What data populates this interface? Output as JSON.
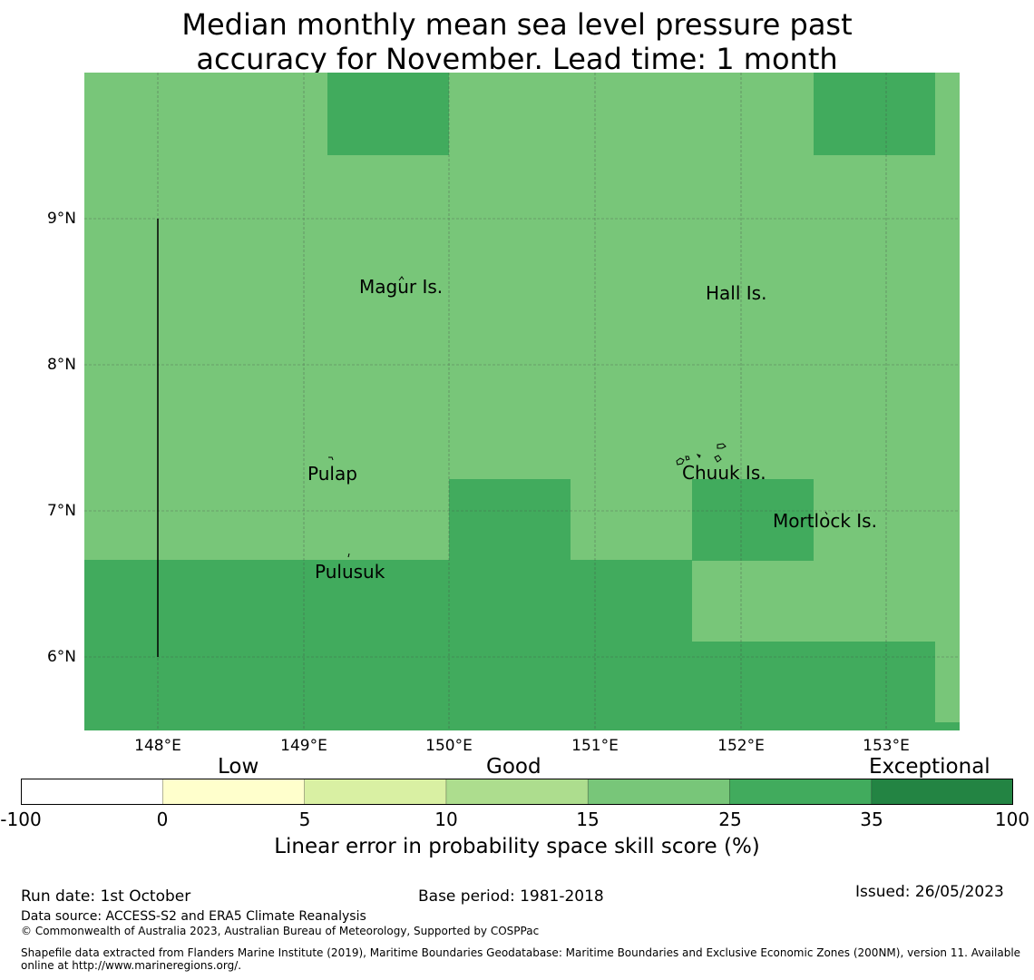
{
  "title": {
    "line1": "Median monthly mean sea level pressure past",
    "line2": "accuracy for November. Lead time: 1 month"
  },
  "map": {
    "lat_labels": [
      "9°N",
      "8°N",
      "7°N",
      "6°N"
    ],
    "lon_labels": [
      "148°E",
      "149°E",
      "150°E",
      "151°E",
      "152°E",
      "153°E"
    ],
    "places": [
      "Magur Is.",
      "Hall Is.",
      "Pulap",
      "Chuuk Is.",
      "Mortlock Is.",
      "Pulusuk"
    ],
    "colors": {
      "skill_15_25": "#78c679",
      "skill_25_35": "#41ab5d",
      "grid": "#444444"
    }
  },
  "legend": {
    "categories": [
      "Low",
      "Good",
      "Exceptional"
    ],
    "ticks": [
      "-100",
      "0",
      "5",
      "10",
      "15",
      "25",
      "35",
      "100"
    ],
    "colors": [
      "#ffffff",
      "#ffffcc",
      "#d9f0a3",
      "#addd8e",
      "#78c679",
      "#41ab5d",
      "#238443"
    ],
    "label": "Linear error in probability space skill score (%)"
  },
  "footer": {
    "run_date": "Run date: 1st October",
    "base_period": "Base period: 1981-2018",
    "issued": "Issued: 26/05/2023",
    "data_source": "Data source: ACCESS-S2 and ERA5 Climate Reanalysis",
    "copyright": "© Commonwealth of Australia 2023, Australian Bureau of Meteorology, Supported by COSPPac",
    "shapefile": "Shapefile data extracted from Flanders Marine Institute (2019), Maritime Boundaries Geodatabase: Maritime Boundaries and Exclusive Economic Zones (200NM), version 11. Available online at http://www.marineregions.org/."
  }
}
